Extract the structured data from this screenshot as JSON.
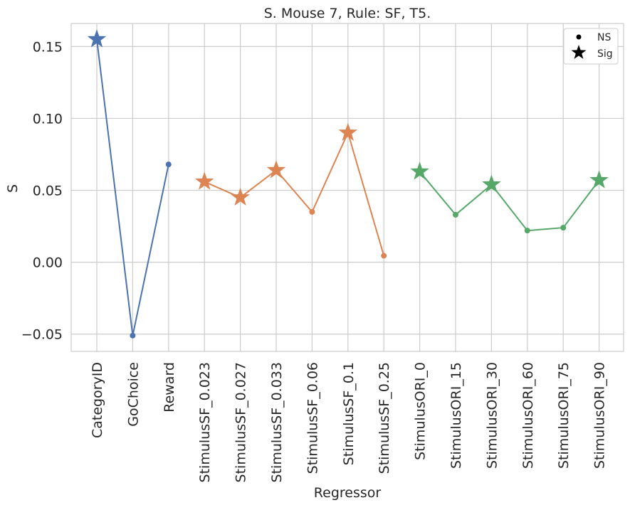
{
  "chart_data": {
    "type": "line",
    "title": "S. Mouse 7, Rule: SF, T5.",
    "xlabel": "Regressor",
    "ylabel": "S",
    "categories": [
      "CategoryID",
      "GoChoice",
      "Reward",
      "StimulusSF_0.023",
      "StimulusSF_0.027",
      "StimulusSF_0.033",
      "StimulusSF_0.06",
      "StimulusSF_0.1",
      "StimulusSF_0.25",
      "StimulusORI_0",
      "StimulusORI_15",
      "StimulusORI_30",
      "StimulusORI_60",
      "StimulusORI_75",
      "StimulusORI_90"
    ],
    "ylim": [
      -0.062,
      0.166
    ],
    "yticks": [
      -0.05,
      0.0,
      0.05,
      0.1,
      0.15
    ],
    "ytick_labels": [
      "−0.05",
      "0.00",
      "0.05",
      "0.10",
      "0.15"
    ],
    "grid": true,
    "legend": {
      "placement": "top-right",
      "entries": [
        {
          "label": "NS",
          "marker": "dot"
        },
        {
          "label": "Sig",
          "marker": "star"
        }
      ]
    },
    "series": [
      {
        "color": "#4c72b0",
        "points": [
          {
            "x": "CategoryID",
            "y": 0.155,
            "sig": true
          },
          {
            "x": "GoChoice",
            "y": -0.051,
            "sig": false
          },
          {
            "x": "Reward",
            "y": 0.068,
            "sig": false
          }
        ]
      },
      {
        "color": "#dd8452",
        "points": [
          {
            "x": "StimulusSF_0.023",
            "y": 0.056,
            "sig": true
          },
          {
            "x": "StimulusSF_0.027",
            "y": 0.045,
            "sig": true
          },
          {
            "x": "StimulusSF_0.033",
            "y": 0.064,
            "sig": true
          },
          {
            "x": "StimulusSF_0.06",
            "y": 0.035,
            "sig": false
          },
          {
            "x": "StimulusSF_0.1",
            "y": 0.09,
            "sig": true
          },
          {
            "x": "StimulusSF_0.25",
            "y": 0.0045,
            "sig": false
          }
        ]
      },
      {
        "color": "#55a868",
        "points": [
          {
            "x": "StimulusORI_0",
            "y": 0.063,
            "sig": true
          },
          {
            "x": "StimulusORI_15",
            "y": 0.033,
            "sig": false
          },
          {
            "x": "StimulusORI_30",
            "y": 0.054,
            "sig": true
          },
          {
            "x": "StimulusORI_60",
            "y": 0.022,
            "sig": false
          },
          {
            "x": "StimulusORI_75",
            "y": 0.024,
            "sig": false
          },
          {
            "x": "StimulusORI_90",
            "y": 0.057,
            "sig": true
          }
        ]
      }
    ]
  }
}
